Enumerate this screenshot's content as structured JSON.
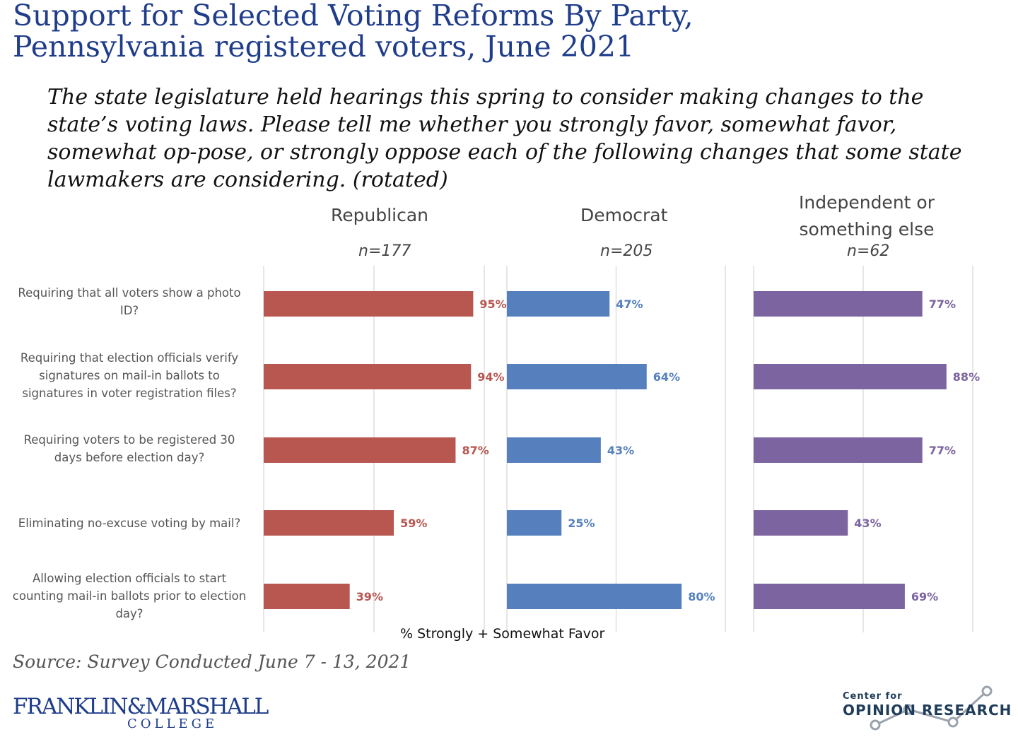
{
  "title": {
    "line1": "Support for Selected Voting Reforms By Party,",
    "line2": "Pennsylvania registered voters, June 2021"
  },
  "question": "The state legislature held hearings this spring to consider making changes to the state’s voting laws. Please tell me whether you strongly favor, somewhat favor, somewhat op-pose, or strongly oppose each of the following changes that some state lawmakers are considering. (rotated)",
  "panels": [
    {
      "name": "Republican",
      "n": "n=177"
    },
    {
      "name": "Democrat",
      "n": "n=205"
    },
    {
      "name_line1": "Independent or",
      "name_line2": "something else",
      "n": "n=62"
    }
  ],
  "x_caption": "% Strongly + Somewhat Favor",
  "source": "Source: Survey Conducted June 7 - 13, 2021",
  "logos": {
    "fm_main": "FRANKLIN&MARSHALL",
    "fm_college": "COLLEGE",
    "cor_small": "Center for",
    "cor_big": "OPINION RESEARCH"
  },
  "chart_data": {
    "type": "bar",
    "orientation": "horizontal",
    "categories": [
      "Requiring that all voters show a photo ID?",
      "Requiring that election officials verify signatures on mail-in ballots to signatures in voter registration files?",
      "Requiring voters to be registered 30 days before election day?",
      "Eliminating no-excuse voting by mail?",
      "Allowing election officials to start counting mail-in ballots prior to election day?"
    ],
    "series": [
      {
        "name": "Republican",
        "color": "#b85650",
        "values": [
          95,
          94,
          87,
          59,
          39
        ],
        "labels": [
          "95%",
          "94%",
          "87%",
          "59%",
          "39%"
        ]
      },
      {
        "name": "Democrat",
        "color": "#5580bd",
        "values": [
          47,
          64,
          43,
          25,
          80
        ],
        "labels": [
          "47%",
          "64%",
          "43%",
          "25%",
          "80%"
        ]
      },
      {
        "name": "Independent or something else",
        "color": "#7b64a0",
        "values": [
          77,
          88,
          77,
          43,
          69
        ],
        "labels": [
          "77%",
          "88%",
          "77%",
          "43%",
          "69%"
        ]
      }
    ],
    "xlabel": "% Strongly + Somewhat Favor",
    "xlim": [
      0,
      100
    ],
    "grid": true
  }
}
